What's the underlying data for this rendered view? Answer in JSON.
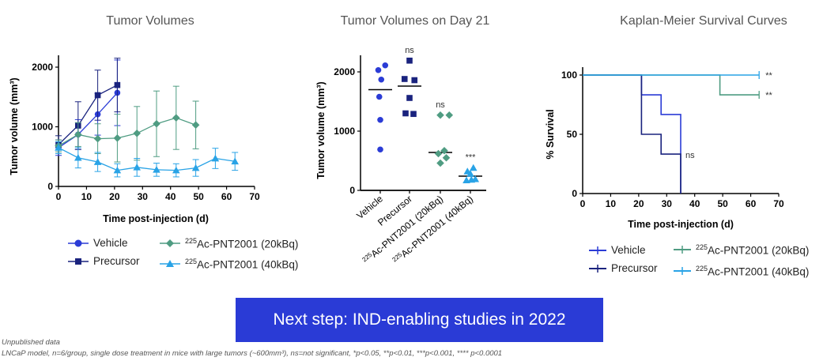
{
  "colors": {
    "vehicle": "#2b3cd6",
    "precursor": "#1a237e",
    "ac20": "#4f9c82",
    "ac40": "#29a3e6",
    "banner": "#2a3bd6"
  },
  "footnotes": {
    "line1": "Unpublished data",
    "line2": "LNCaP model, n=6/group, single dose treatment in mice with large tumors (~600mm³), ns=not significant, *p<0.05, **p<0.01, ***p<0.001, **** p<0.0001"
  },
  "banner": {
    "text": "Next step: IND-enabling studies in 2022"
  },
  "legends": {
    "vehicle": "Vehicle",
    "precursor": "Precursor",
    "ac20_sup": "225",
    "ac20_rest": "Ac-PNT2001 (20kBq)",
    "ac40_sup": "225",
    "ac40_rest": "Ac-PNT2001 (40kBq)"
  },
  "chart_data": [
    {
      "type": "line",
      "title": "Tumor Volumes",
      "xlabel": "Time post-injection (d)",
      "ylabel": "Tumor volume (mm³)",
      "xlim": [
        0,
        70
      ],
      "ylim": [
        0,
        2100
      ],
      "xticks": [
        0,
        10,
        20,
        30,
        40,
        50,
        60,
        70
      ],
      "yticks": [
        0,
        1000,
        2000
      ],
      "series": [
        {
          "name": "Vehicle",
          "color": "#2b3cd6",
          "marker": "circle",
          "x": [
            0,
            7,
            14,
            21
          ],
          "y": [
            650,
            870,
            1210,
            1570
          ],
          "err": [
            130,
            250,
            350,
            550
          ]
        },
        {
          "name": "Precursor",
          "color": "#1a237e",
          "marker": "square",
          "x": [
            0,
            7,
            14,
            21
          ],
          "y": [
            700,
            1020,
            1530,
            1700
          ],
          "err": [
            150,
            400,
            420,
            450
          ]
        },
        {
          "name": "225Ac-PNT2001 (20kBq)",
          "color": "#4f9c82",
          "marker": "diamond",
          "x": [
            0,
            7,
            14,
            21,
            28,
            35,
            42,
            49
          ],
          "y": [
            680,
            870,
            800,
            810,
            890,
            1050,
            1150,
            1030
          ],
          "err": [
            100,
            200,
            250,
            400,
            450,
            550,
            530,
            400
          ]
        },
        {
          "name": "225Ac-PNT2001 (40kBq)",
          "color": "#29a3e6",
          "marker": "triangle",
          "x": [
            0,
            7,
            14,
            21,
            28,
            35,
            42,
            49,
            56,
            63
          ],
          "y": [
            650,
            480,
            410,
            270,
            320,
            280,
            270,
            310,
            470,
            420
          ],
          "err": [
            100,
            170,
            160,
            110,
            150,
            110,
            110,
            140,
            170,
            150
          ]
        }
      ]
    },
    {
      "type": "scatter",
      "title": "Tumor Volumes on Day 21",
      "ylabel": "Tumor volume (mm³)",
      "ylim": [
        0,
        2200
      ],
      "yticks": [
        0,
        1000,
        2000
      ],
      "categories": [
        "Vehicle",
        "Precursor",
        "225Ac-PNT2001 (20kBq)",
        "225Ac-PNT2001 (40kBq)"
      ],
      "category_labels": [
        {
          "sup": "",
          "rest": "Vehicle"
        },
        {
          "sup": "",
          "rest": "Precursor"
        },
        {
          "sup": "225",
          "rest": "Ac-PNT2001 (20kBq)"
        },
        {
          "sup": "225",
          "rest": "Ac-PNT2001 (40kBq)"
        }
      ],
      "series": [
        {
          "name": "Vehicle",
          "color": "#2b3cd6",
          "marker": "circle",
          "mean": 1700,
          "significance": "",
          "points": [
            [
              -0.1,
              2030
            ],
            [
              0.25,
              2110
            ],
            [
              0.05,
              1870
            ],
            [
              -0.05,
              1580
            ],
            [
              0.0,
              1190
            ],
            [
              0.0,
              690
            ]
          ]
        },
        {
          "name": "Precursor",
          "color": "#1a237e",
          "marker": "square",
          "mean": 1760,
          "significance": "ns",
          "points": [
            [
              0.0,
              2190
            ],
            [
              -0.25,
              1880
            ],
            [
              0.25,
              1860
            ],
            [
              0.0,
              1560
            ],
            [
              -0.2,
              1300
            ],
            [
              0.2,
              1290
            ]
          ]
        },
        {
          "name": "225Ac-PNT2001 (20kBq)",
          "color": "#4f9c82",
          "marker": "diamond",
          "mean": 640,
          "significance": "ns",
          "points": [
            [
              0.0,
              1270
            ],
            [
              0.45,
              1270
            ],
            [
              -0.1,
              620
            ],
            [
              0.2,
              670
            ],
            [
              0.0,
              460
            ],
            [
              0.3,
              550
            ]
          ]
        },
        {
          "name": "225Ac-PNT2001 (40kBq)",
          "color": "#29a3e6",
          "marker": "triangle",
          "mean": 240,
          "significance": "***",
          "points": [
            [
              -0.15,
              320
            ],
            [
              0.15,
              380
            ],
            [
              0.0,
              280
            ],
            [
              -0.2,
              170
            ],
            [
              0.05,
              180
            ],
            [
              0.25,
              190
            ]
          ]
        }
      ]
    },
    {
      "type": "line",
      "title": "Kaplan-Meier Survival Curves",
      "xlabel": "Time post-injection (d)",
      "ylabel": "% Survival",
      "xlim": [
        0,
        70
      ],
      "ylim": [
        0,
        100
      ],
      "xticks": [
        0,
        10,
        20,
        30,
        40,
        50,
        60,
        70
      ],
      "yticks": [
        0,
        50,
        100
      ],
      "series": [
        {
          "name": "Vehicle",
          "color": "#2b3cd6",
          "steps": [
            [
              0,
              100
            ],
            [
              21,
              100
            ],
            [
              21,
              83.3
            ],
            [
              28,
              83.3
            ],
            [
              28,
              66.7
            ],
            [
              35,
              66.7
            ],
            [
              35,
              0
            ]
          ],
          "annotation": "ns"
        },
        {
          "name": "Precursor",
          "color": "#1a237e",
          "steps": [
            [
              0,
              100
            ],
            [
              21,
              100
            ],
            [
              21,
              50
            ],
            [
              28,
              50
            ],
            [
              28,
              33.3
            ],
            [
              35,
              33.3
            ],
            [
              35,
              0
            ]
          ],
          "annotation": ""
        },
        {
          "name": "225Ac-PNT2001 (20kBq)",
          "color": "#4f9c82",
          "steps": [
            [
              0,
              100
            ],
            [
              49,
              100
            ],
            [
              49,
              83.3
            ],
            [
              63,
              83.3
            ]
          ],
          "annotation": "**"
        },
        {
          "name": "225Ac-PNT2001 (40kBq)",
          "color": "#29a3e6",
          "steps": [
            [
              0,
              100
            ],
            [
              63,
              100
            ]
          ],
          "annotation": "**"
        }
      ]
    }
  ]
}
